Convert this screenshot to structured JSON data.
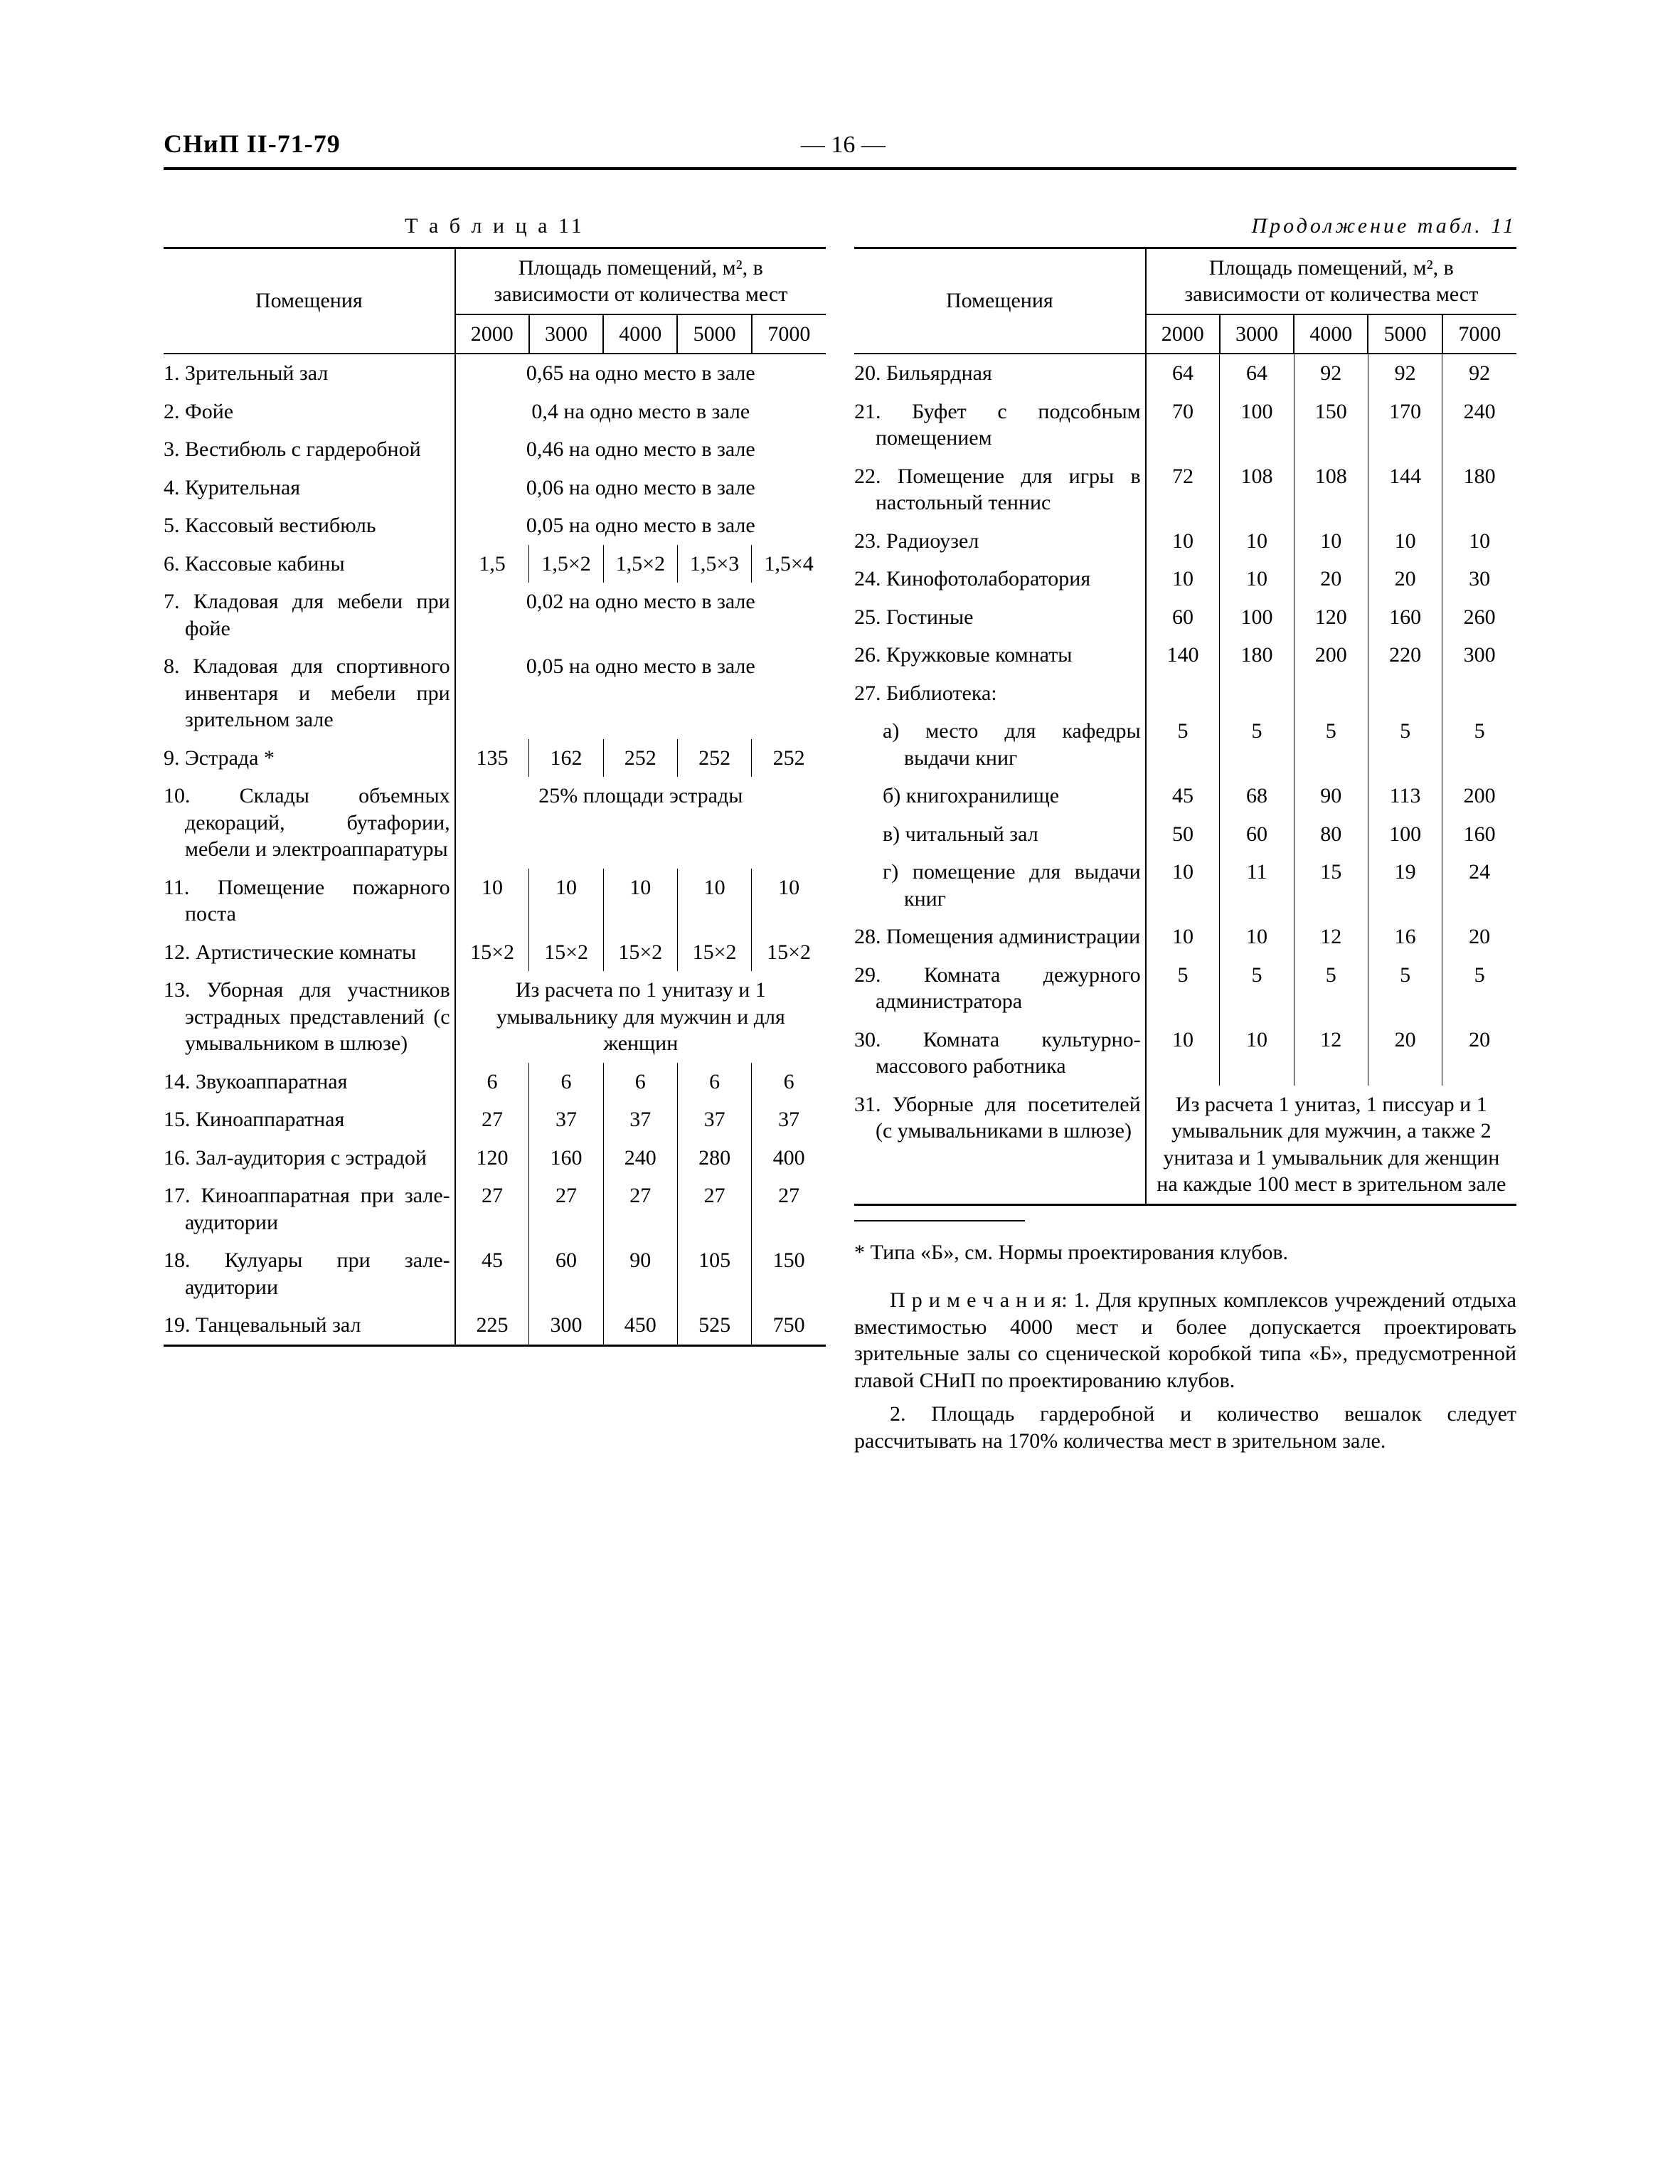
{
  "header": {
    "doc_code": "СНиП II-71-79",
    "page_number": "— 16 —"
  },
  "left": {
    "caption": "Т а б л и ц а 11",
    "header_room": "Помещения",
    "header_area": "Площадь помещений, м², в зависимости от количества мест",
    "capacities": [
      "2000",
      "3000",
      "4000",
      "5000",
      "7000"
    ],
    "rows": [
      {
        "label": "1. Зрительный зал",
        "merged": "0,65 на одно место в зале"
      },
      {
        "label": "2. Фойе",
        "merged": "0,4 на одно место в зале"
      },
      {
        "label": "3. Вестибюль с гардеробной",
        "merged": "0,46 на одно место в зале"
      },
      {
        "label": "4. Курительная",
        "merged": "0,06 на одно место в зале"
      },
      {
        "label": "5. Кассовый вестибюль",
        "merged": "0,05 на одно место в зале"
      },
      {
        "label": "6. Кассовые кабины",
        "values": [
          "1,5",
          "1,5×2",
          "1,5×2",
          "1,5×3",
          "1,5×4"
        ]
      },
      {
        "label": "7. Кладовая для мебели при фойе",
        "merged": "0,02 на одно место в зале"
      },
      {
        "label": "8. Кладовая для спортивного инвентаря и мебели при зрительном зале",
        "merged": "0,05 на одно место в зале"
      },
      {
        "label": "9. Эстрада *",
        "values": [
          "135",
          "162",
          "252",
          "252",
          "252"
        ]
      },
      {
        "label": "10. Склады объемных декораций, бутафории, мебели и электроаппаратуры",
        "merged": "25% площади эстрады"
      },
      {
        "label": "11. Помещение пожарного поста",
        "values": [
          "10",
          "10",
          "10",
          "10",
          "10"
        ]
      },
      {
        "label": "12. Артистические комнаты",
        "values": [
          "15×2",
          "15×2",
          "15×2",
          "15×2",
          "15×2"
        ]
      },
      {
        "label": "13. Уборная для участников эстрадных представлений (с умывальником в шлюзе)",
        "merged": "Из расчета по 1 унитазу и 1 умывальнику для мужчин и для женщин"
      },
      {
        "label": "14. Звукоаппаратная",
        "values": [
          "6",
          "6",
          "6",
          "6",
          "6"
        ]
      },
      {
        "label": "15. Киноаппаратная",
        "values": [
          "27",
          "37",
          "37",
          "37",
          "37"
        ]
      },
      {
        "label": "16. Зал-аудитория с эстрадой",
        "values": [
          "120",
          "160",
          "240",
          "280",
          "400"
        ]
      },
      {
        "label": "17. Киноаппаратная при зале-аудитории",
        "values": [
          "27",
          "27",
          "27",
          "27",
          "27"
        ]
      },
      {
        "label": "18. Кулуары при зале-аудитории",
        "values": [
          "45",
          "60",
          "90",
          "105",
          "150"
        ]
      },
      {
        "label": "19. Танцевальный зал",
        "values": [
          "225",
          "300",
          "450",
          "525",
          "750"
        ]
      }
    ]
  },
  "right": {
    "caption": "Продолжение табл. 11",
    "header_room": "Помещения",
    "header_area": "Площадь помещений, м², в зависимости от количества мест",
    "capacities": [
      "2000",
      "3000",
      "4000",
      "5000",
      "7000"
    ],
    "rows": [
      {
        "label": "20. Бильярдная",
        "values": [
          "64",
          "64",
          "92",
          "92",
          "92"
        ]
      },
      {
        "label": "21. Буфет с подсобным помещением",
        "values": [
          "70",
          "100",
          "150",
          "170",
          "240"
        ]
      },
      {
        "label": "22. Помещение для игры в настольный теннис",
        "values": [
          "72",
          "108",
          "108",
          "144",
          "180"
        ]
      },
      {
        "label": "23. Радиоузел",
        "values": [
          "10",
          "10",
          "10",
          "10",
          "10"
        ]
      },
      {
        "label": "24. Кинофотолаборатория",
        "values": [
          "10",
          "10",
          "20",
          "20",
          "30"
        ]
      },
      {
        "label": "25. Гостиные",
        "values": [
          "60",
          "100",
          "120",
          "160",
          "260"
        ]
      },
      {
        "label": "26. Кружковые комнаты",
        "values": [
          "140",
          "180",
          "200",
          "220",
          "300"
        ]
      },
      {
        "label": "27. Библиотека:",
        "empty": true
      },
      {
        "label": "а) место для кафедры выдачи книг",
        "sub": true,
        "values": [
          "5",
          "5",
          "5",
          "5",
          "5"
        ]
      },
      {
        "label": "б) книгохранилище",
        "sub": true,
        "values": [
          "45",
          "68",
          "90",
          "113",
          "200"
        ]
      },
      {
        "label": "в) читальный зал",
        "sub": true,
        "values": [
          "50",
          "60",
          "80",
          "100",
          "160"
        ]
      },
      {
        "label": "г) помещение для выдачи книг",
        "sub": true,
        "values": [
          "10",
          "11",
          "15",
          "19",
          "24"
        ]
      },
      {
        "label": "28. Помещения администрации",
        "values": [
          "10",
          "10",
          "12",
          "16",
          "20"
        ]
      },
      {
        "label": "29. Комната дежурного администратора",
        "values": [
          "5",
          "5",
          "5",
          "5",
          "5"
        ]
      },
      {
        "label": "30. Комната культурно-массового работника",
        "values": [
          "10",
          "10",
          "12",
          "20",
          "20"
        ]
      },
      {
        "label": "31. Уборные для посетителей (с умывальниками в шлюзе)",
        "merged": "Из расчета 1 унитаз, 1 писсуар и 1 умывальник для мужчин, а также 2 унитаза и 1 умывальник для женщин на каждые 100 мест в зрительном зале"
      }
    ],
    "footnote": "* Типа «Б», см. Нормы проектирования клубов.",
    "notes": [
      "П р и м е ч а н и я: 1. Для крупных комплексов учреждений отдыха вместимостью 4000 мест и более допускается проектировать зрительные залы со сценической коробкой типа «Б», предусмотренной главой СНиП по проектированию клубов.",
      "2. Площадь гардеробной и количество вешалок следует рассчитывать на 170% количества мест в зрительном зале."
    ]
  }
}
